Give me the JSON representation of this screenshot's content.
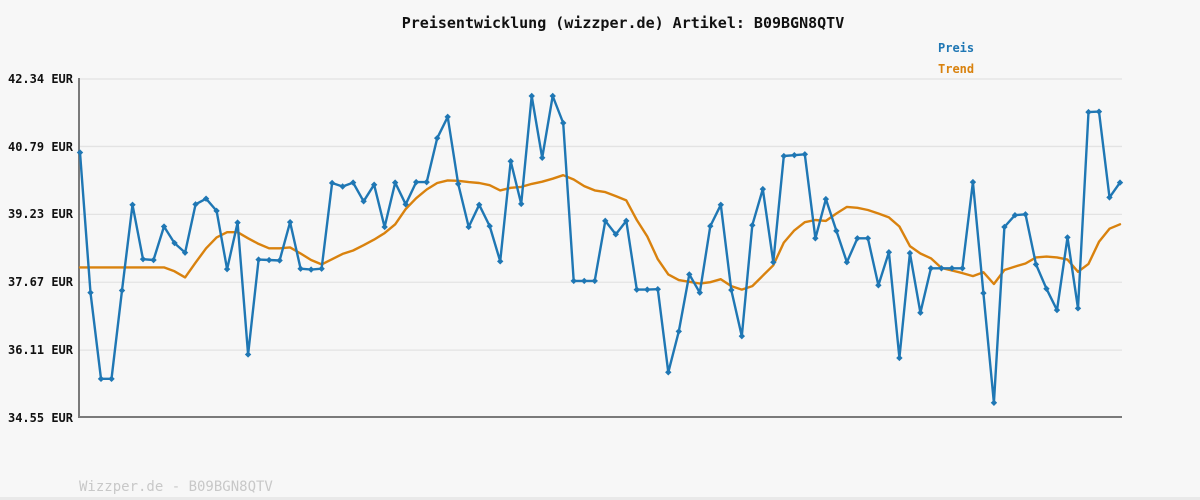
{
  "header": {
    "title": "Preisentwicklung (wizzper.de) Artikel: B09BGN8QTV"
  },
  "legend": {
    "items": [
      {
        "label": "Preis",
        "color": "#1f77b4"
      },
      {
        "label": "Trend",
        "color": "#d9820e"
      }
    ]
  },
  "footer": {
    "text": "Wizzper.de - B09BGN8QTV"
  },
  "colors": {
    "price": "#1f77b4",
    "trend": "#d9820e",
    "axis": "#7a7a7a",
    "grid": "#e3e3e3",
    "background": "#f7f7f7"
  },
  "chart_data": {
    "type": "line",
    "title": "Preisentwicklung (wizzper.de) Artikel: B09BGN8QTV",
    "xlabel": "",
    "ylabel": "",
    "y_unit": "EUR",
    "ylim": [
      34.55,
      42.34
    ],
    "y_ticks": [
      42.34,
      40.79,
      39.23,
      37.67,
      36.11,
      34.55
    ],
    "y_tick_labels": [
      "42.34 EUR",
      "40.79 EUR",
      "39.23 EUR",
      "37.67 EUR",
      "36.11 EUR",
      "34.55 EUR"
    ],
    "x_tick_labels_visible": false,
    "grid": true,
    "legend_position": "top-right",
    "series": [
      {
        "name": "Preis",
        "color": "#1f77b4",
        "marker": "diamond",
        "values": [
          40.65,
          37.43,
          35.45,
          35.45,
          37.48,
          39.45,
          38.2,
          38.18,
          38.95,
          38.57,
          38.35,
          39.46,
          39.59,
          39.31,
          37.97,
          39.04,
          36.01,
          38.19,
          38.18,
          38.17,
          39.05,
          37.98,
          37.96,
          37.98,
          39.95,
          39.87,
          39.96,
          39.53,
          39.91,
          38.94,
          39.96,
          39.46,
          39.97,
          39.97,
          40.98,
          41.47,
          39.93,
          38.94,
          39.45,
          38.96,
          38.15,
          40.45,
          39.47,
          41.95,
          40.53,
          41.95,
          41.33,
          37.7,
          37.7,
          37.7,
          39.08,
          38.77,
          39.08,
          37.5,
          37.5,
          37.51,
          35.6,
          36.54,
          37.85,
          37.43,
          38.96,
          39.45,
          37.49,
          36.43,
          38.98,
          39.81,
          38.13,
          40.57,
          40.59,
          40.61,
          38.68,
          39.58,
          38.85,
          38.13,
          38.68,
          38.68,
          37.6,
          38.36,
          35.93,
          38.34,
          36.97,
          37.99,
          37.99,
          37.99,
          37.99,
          39.97,
          37.42,
          34.9,
          38.94,
          39.21,
          39.23,
          38.08,
          37.52,
          37.03,
          38.7,
          37.07,
          41.58,
          41.59,
          39.62,
          39.96
        ]
      },
      {
        "name": "Trend",
        "color": "#d9820e",
        "marker": "none",
        "values": [
          38.01,
          38.01,
          38.01,
          38.01,
          38.01,
          38.01,
          38.01,
          38.01,
          38.01,
          37.92,
          37.78,
          38.12,
          38.45,
          38.7,
          38.82,
          38.82,
          38.68,
          38.55,
          38.45,
          38.45,
          38.47,
          38.33,
          38.18,
          38.08,
          38.2,
          38.32,
          38.4,
          38.52,
          38.65,
          38.8,
          39.0,
          39.35,
          39.6,
          39.8,
          39.95,
          40.01,
          40.0,
          39.97,
          39.95,
          39.9,
          39.78,
          39.84,
          39.86,
          39.93,
          39.98,
          40.05,
          40.13,
          40.03,
          39.88,
          39.78,
          39.74,
          39.65,
          39.55,
          39.1,
          38.72,
          38.2,
          37.85,
          37.72,
          37.68,
          37.64,
          37.67,
          37.74,
          37.58,
          37.5,
          37.58,
          37.82,
          38.06,
          38.58,
          38.86,
          39.05,
          39.1,
          39.08,
          39.25,
          39.4,
          39.38,
          39.33,
          39.25,
          39.16,
          38.95,
          38.5,
          38.33,
          38.22,
          38.0,
          37.94,
          37.88,
          37.81,
          37.9,
          37.63,
          37.95,
          38.03,
          38.1,
          38.24,
          38.26,
          38.24,
          38.19,
          37.91,
          38.09,
          38.6,
          38.9,
          39.0
        ]
      }
    ]
  }
}
